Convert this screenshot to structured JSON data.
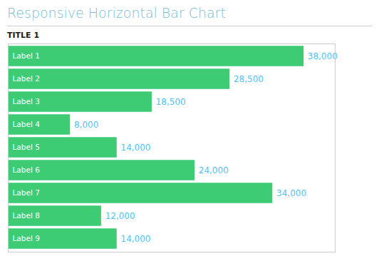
{
  "chart_data": {
    "type": "bar",
    "orientation": "horizontal",
    "title": "Responsive Horizontal Bar Chart",
    "subtitle": "TITLE 1",
    "categories": [
      "Label 1",
      "Label 2",
      "Label 3",
      "Label 4",
      "Label 5",
      "Label 6",
      "Label 7",
      "Label 8",
      "Label 9"
    ],
    "values": [
      38000,
      28500,
      18500,
      8000,
      14000,
      24000,
      34000,
      12000,
      14000
    ],
    "value_labels": [
      "38,000",
      "28,500",
      "18,500",
      "8,000",
      "14,000",
      "24,000",
      "34,000",
      "12,000",
      "14,000"
    ],
    "data_labels": true,
    "color": "#3dcc74",
    "xlim": [
      0,
      42000
    ],
    "tick_labels": false,
    "grid": false
  }
}
